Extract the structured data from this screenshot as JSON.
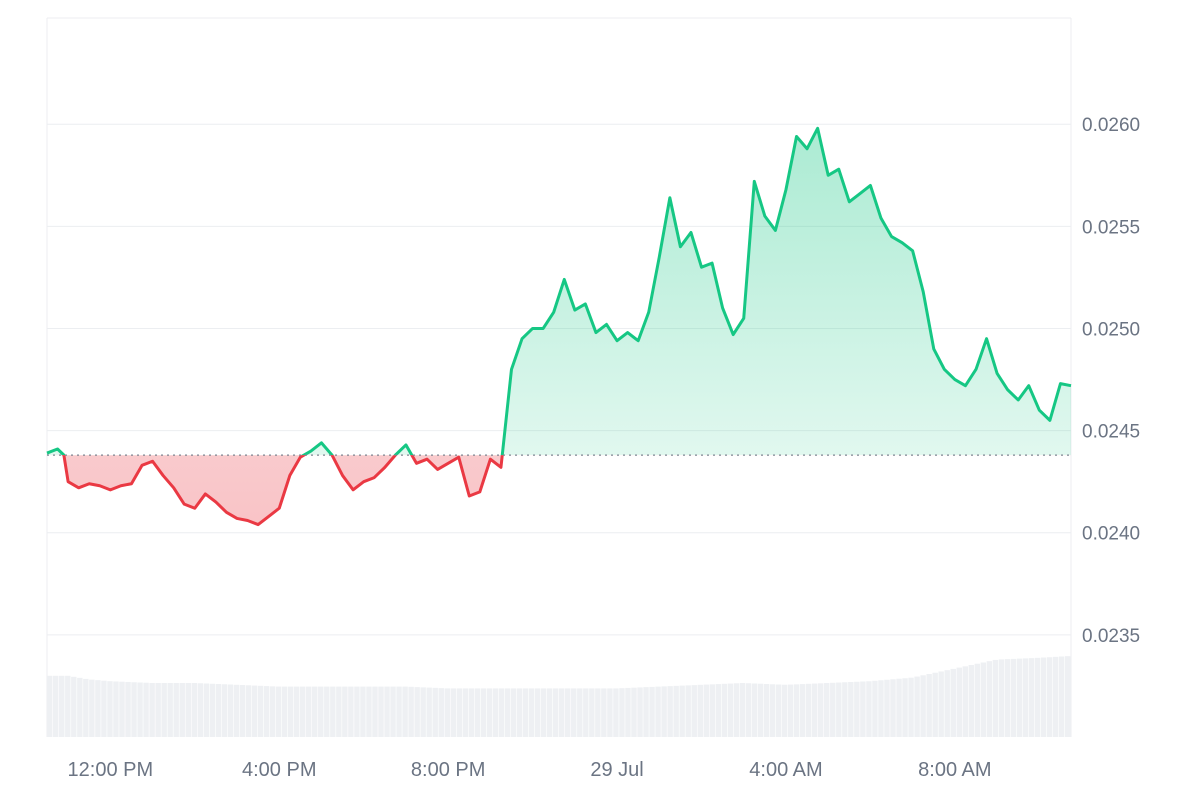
{
  "chart_data": {
    "type": "area",
    "title": "",
    "xlabel": "",
    "ylabel": "",
    "ylim": [
      0.023,
      0.02652
    ],
    "y_ticks": [
      "0.0235",
      "0.0240",
      "0.0245",
      "0.0250",
      "0.0255",
      "0.0260"
    ],
    "y_tick_values": [
      0.0235,
      0.024,
      0.0245,
      0.025,
      0.0255,
      0.026
    ],
    "x_ticks": [
      "12:00 PM",
      "4:00 PM",
      "8:00 PM",
      "29 Jul",
      "4:00 AM",
      "8:00 AM"
    ],
    "x_tick_times_h": [
      12,
      16,
      20,
      24,
      28,
      32
    ],
    "x_range_h": [
      10.5,
      34.75
    ],
    "baseline": 0.02438,
    "grid": true,
    "legend": "none",
    "colors": {
      "up": "#16c784",
      "down": "#ea3943",
      "grid": "#eceef1",
      "volume": "#eef0f3",
      "axis_text": "#6b7483"
    },
    "series": [
      {
        "x_h": [
          10.5,
          10.75,
          10.9,
          11.0,
          11.25,
          11.5,
          11.75,
          12.0,
          12.25,
          12.5,
          12.75,
          13.0,
          13.25,
          13.5,
          13.75,
          14.0,
          14.25,
          14.5,
          14.75,
          15.0,
          15.25,
          15.5,
          15.75,
          16.0,
          16.25,
          16.5,
          16.75,
          17.0,
          17.25,
          17.5,
          17.75,
          18.0,
          18.25,
          18.5,
          18.75,
          19.0,
          19.25,
          19.5,
          19.75,
          20.0,
          20.25,
          20.5,
          20.75,
          21.0,
          21.25,
          21.5,
          21.75,
          22.0,
          22.25,
          22.5,
          22.75,
          23.0,
          23.25,
          23.5,
          23.75,
          24.0,
          24.25,
          24.5,
          24.75,
          25.0,
          25.25,
          25.5,
          25.75,
          26.0,
          26.25,
          26.5,
          26.75,
          27.0,
          27.25,
          27.5,
          27.75,
          28.0,
          28.25,
          28.5,
          28.75,
          29.0,
          29.25,
          29.5,
          29.75,
          30.0,
          30.25,
          30.5,
          30.75,
          31.0,
          31.25,
          31.5,
          31.75,
          32.0,
          32.25,
          32.5,
          32.75,
          33.0,
          33.25,
          33.5,
          33.75,
          34.0,
          34.25,
          34.5,
          34.75
        ],
        "values": [
          0.02439,
          0.02441,
          0.02438,
          0.02425,
          0.02422,
          0.02424,
          0.02423,
          0.02421,
          0.02423,
          0.02424,
          0.02433,
          0.02435,
          0.02428,
          0.02422,
          0.02414,
          0.02412,
          0.02419,
          0.02415,
          0.0241,
          0.02407,
          0.02406,
          0.02404,
          0.02408,
          0.02412,
          0.02428,
          0.02437,
          0.0244,
          0.02444,
          0.02438,
          0.02428,
          0.02421,
          0.02425,
          0.02427,
          0.02432,
          0.02438,
          0.02443,
          0.02434,
          0.02436,
          0.02431,
          0.02434,
          0.02437,
          0.02418,
          0.0242,
          0.02436,
          0.02432,
          0.0248,
          0.02495,
          0.025,
          0.025,
          0.02508,
          0.02524,
          0.02509,
          0.02512,
          0.02498,
          0.02502,
          0.02494,
          0.02498,
          0.02494,
          0.02508,
          0.02535,
          0.02564,
          0.0254,
          0.02547,
          0.0253,
          0.02532,
          0.0251,
          0.02497,
          0.02505,
          0.02572,
          0.02555,
          0.02548,
          0.02568,
          0.02594,
          0.02588,
          0.02598,
          0.02575,
          0.02578,
          0.02562,
          0.02566,
          0.0257,
          0.02554,
          0.02545,
          0.02542,
          0.02538,
          0.02518,
          0.0249,
          0.0248,
          0.02475,
          0.02472,
          0.0248,
          0.02495,
          0.02478,
          0.0247,
          0.02465,
          0.02472,
          0.0246,
          0.02455,
          0.02473,
          0.02472
        ]
      }
    ],
    "volume": {
      "x_h": [
        10.5,
        11.0,
        11.5,
        12.0,
        13.0,
        14.0,
        15.0,
        16.0,
        17.0,
        18.0,
        19.0,
        20.0,
        21.0,
        22.0,
        23.0,
        24.0,
        25.0,
        26.0,
        27.0,
        28.0,
        29.0,
        30.0,
        31.0,
        32.0,
        33.0,
        34.0,
        34.75
      ],
      "values": [
        0.34,
        0.34,
        0.32,
        0.31,
        0.3,
        0.3,
        0.29,
        0.28,
        0.28,
        0.28,
        0.28,
        0.27,
        0.27,
        0.27,
        0.27,
        0.27,
        0.28,
        0.29,
        0.3,
        0.29,
        0.3,
        0.31,
        0.33,
        0.38,
        0.43,
        0.44,
        0.45
      ]
    }
  }
}
